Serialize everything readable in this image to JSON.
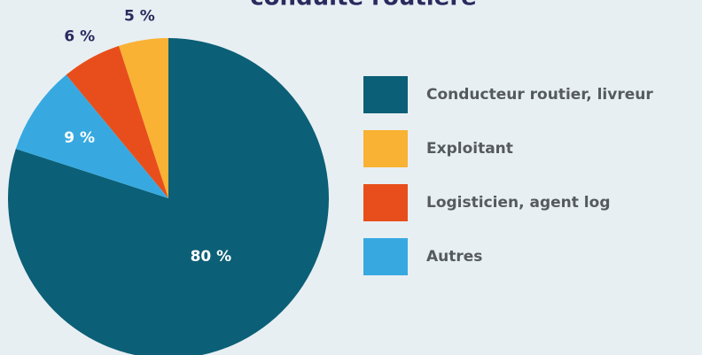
{
  "chart_data": {
    "type": "pie",
    "title": "conduite routière",
    "categories": [
      "Conducteur routier, livreur",
      "Exploitant",
      "Logisticien, agent log",
      "Autres"
    ],
    "values": [
      80,
      5,
      6,
      9
    ],
    "value_labels": [
      "80 %",
      "5 %",
      "6 %",
      "9 %"
    ],
    "colors": [
      "#0b5f76",
      "#f9b233",
      "#e84e1b",
      "#37a9e0"
    ]
  }
}
